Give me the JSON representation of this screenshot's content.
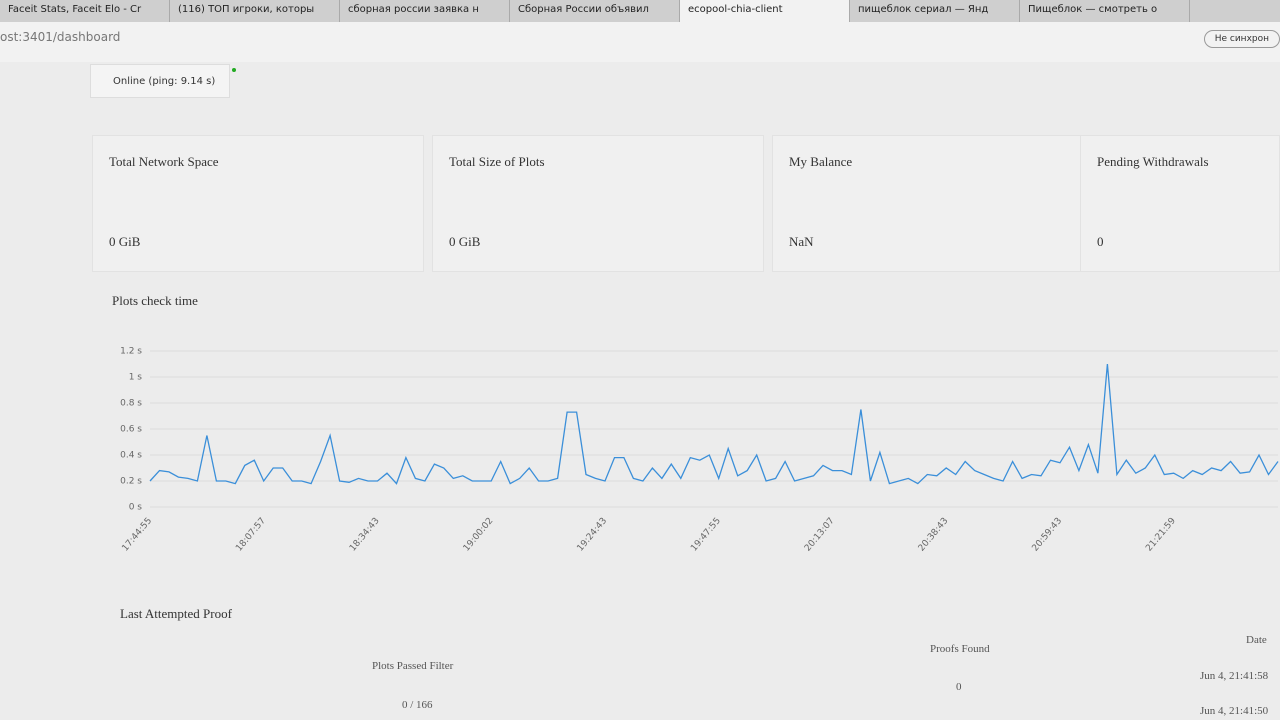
{
  "browser": {
    "tabs": [
      "Faceit Stats, Faceit Elo - Cr",
      "(116) ТОП игроки, которы",
      "сборная россии заявка н",
      "Сборная России объявил",
      "ecopool-chia-client",
      "пищеблок сериал — Янд",
      "Пищеблок — смотреть о"
    ],
    "url": "ost:3401/dashboard",
    "sync_button": "Не синхрон"
  },
  "dashboard": {
    "status": "Online (ping: 9.14 s)",
    "cards": [
      {
        "title": "Total Network Space",
        "value": "0 GiB"
      },
      {
        "title": "Total Size of Plots",
        "value": "0 GiB"
      },
      {
        "title": "My Balance",
        "value": "NaN"
      },
      {
        "title": "Pending Withdrawals",
        "value": "0"
      }
    ],
    "chart_title": "Plots check time",
    "proof": {
      "title": "Last Attempted Proof",
      "headers": [
        "Plots Passed Filter",
        "Proofs Found",
        "Date"
      ],
      "rows": [
        {
          "plots": "0 / 166",
          "proofs": "0",
          "date": "Jun 4, 21:41:58"
        },
        {
          "date": "Jun 4, 21:41:50"
        }
      ]
    }
  },
  "chart_data": {
    "type": "line",
    "color": "#3b8fd9",
    "grid": true,
    "categories": [
      "17:44:55",
      null,
      null,
      null,
      null,
      null,
      null,
      null,
      null,
      null,
      null,
      null,
      "18:07:57",
      null,
      null,
      null,
      null,
      null,
      null,
      null,
      null,
      null,
      null,
      null,
      "18:34:43",
      null,
      null,
      null,
      null,
      null,
      null,
      null,
      null,
      null,
      null,
      null,
      "19:00:02",
      null,
      null,
      null,
      null,
      null,
      null,
      null,
      null,
      null,
      null,
      null,
      "19:24:43",
      null,
      null,
      null,
      null,
      null,
      null,
      null,
      null,
      null,
      null,
      null,
      "19:47:55",
      null,
      null,
      null,
      null,
      null,
      null,
      null,
      null,
      null,
      null,
      null,
      "20:13:07",
      null,
      null,
      null,
      null,
      null,
      null,
      null,
      null,
      null,
      null,
      null,
      "20:38:43",
      null,
      null,
      null,
      null,
      null,
      null,
      null,
      null,
      null,
      null,
      null,
      "20:59:43",
      null,
      null,
      null,
      null,
      null,
      null,
      null,
      null,
      null,
      null,
      null,
      "21:21:59",
      null,
      null,
      null,
      null,
      null,
      null,
      null,
      null,
      null,
      null,
      null
    ],
    "values": [
      0.2,
      0.28,
      0.27,
      0.23,
      0.22,
      0.2,
      0.55,
      0.2,
      0.2,
      0.18,
      0.32,
      0.36,
      0.2,
      0.3,
      0.3,
      0.2,
      0.2,
      0.18,
      0.35,
      0.55,
      0.2,
      0.19,
      0.22,
      0.2,
      0.2,
      0.26,
      0.18,
      0.38,
      0.22,
      0.2,
      0.33,
      0.3,
      0.22,
      0.24,
      0.2,
      0.2,
      0.2,
      0.35,
      0.18,
      0.22,
      0.3,
      0.2,
      0.2,
      0.22,
      0.73,
      0.73,
      0.25,
      0.22,
      0.2,
      0.38,
      0.38,
      0.22,
      0.2,
      0.3,
      0.22,
      0.33,
      0.22,
      0.38,
      0.36,
      0.4,
      0.22,
      0.45,
      0.24,
      0.28,
      0.4,
      0.2,
      0.22,
      0.35,
      0.2,
      0.22,
      0.24,
      0.32,
      0.28,
      0.28,
      0.25,
      0.75,
      0.2,
      0.42,
      0.18,
      0.2,
      0.22,
      0.18,
      0.25,
      0.24,
      0.3,
      0.25,
      0.35,
      0.28,
      0.25,
      0.22,
      0.2,
      0.35,
      0.22,
      0.25,
      0.24,
      0.36,
      0.34,
      0.46,
      0.28,
      0.48,
      0.26,
      1.1,
      0.25,
      0.36,
      0.26,
      0.3,
      0.4,
      0.25,
      0.26,
      0.22,
      0.28,
      0.25,
      0.3,
      0.28,
      0.35,
      0.26,
      0.27,
      0.4,
      0.25,
      0.35
    ],
    "ylim": [
      0,
      1.2
    ],
    "yticks": [
      {
        "value": 0,
        "label": "0 s"
      },
      {
        "value": 0.2,
        "label": "0.2 s"
      },
      {
        "value": 0.4,
        "label": "0.4 s"
      },
      {
        "value": 0.6,
        "label": "0.6 s"
      },
      {
        "value": 0.8,
        "label": "0.8 s"
      },
      {
        "value": 1,
        "label": "1 s"
      },
      {
        "value": 1.2,
        "label": "1.2 s"
      }
    ]
  }
}
